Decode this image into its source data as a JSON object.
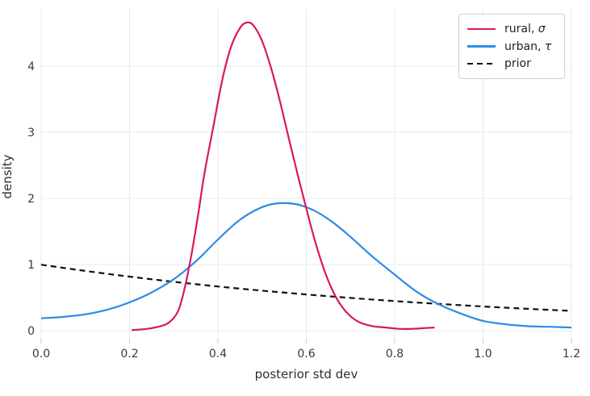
{
  "figure": {
    "background": "#ffffff",
    "grid_color": "#e9e9e9",
    "tick_color": "#c9c9c9",
    "text_color": "#3a3a3a"
  },
  "axes": {
    "xlabel": "posterior std dev",
    "ylabel": "density"
  },
  "legend": {
    "position": "upper right",
    "items": [
      {
        "key": "rural-sigma",
        "prefix": "rural, ",
        "symbol": "σ",
        "color": "#d7195f",
        "dash": "solid"
      },
      {
        "key": "urban-tau",
        "prefix": "urban, ",
        "symbol": "τ",
        "color": "#2d8ce6",
        "dash": "solid"
      },
      {
        "key": "prior",
        "prefix": "prior",
        "symbol": "",
        "color": "#111111",
        "dash": "dashed"
      }
    ]
  },
  "chart_data": {
    "type": "line",
    "title": "",
    "xlabel": "posterior std dev",
    "ylabel": "density",
    "xlim": [
      0,
      1.2
    ],
    "ylim": [
      -0.12,
      4.88
    ],
    "x_ticks": [
      0.0,
      0.2,
      0.4,
      0.6,
      0.8,
      1.0,
      1.2
    ],
    "x_tick_labels": [
      "0.0",
      "0.2",
      "0.4",
      "0.6",
      "0.8",
      "1.0",
      "1.2"
    ],
    "y_ticks": [
      0,
      1,
      2,
      3,
      4
    ],
    "y_tick_labels": [
      "0",
      "1",
      "2",
      "3",
      "4"
    ],
    "grid": true,
    "legend_position": "upper right",
    "series": [
      {
        "key": "rural-sigma",
        "name": "rural, σ",
        "color": "#d7195f",
        "style": "solid",
        "x": [
          0.205,
          0.24,
          0.27,
          0.29,
          0.31,
          0.325,
          0.34,
          0.355,
          0.37,
          0.39,
          0.41,
          0.43,
          0.45,
          0.465,
          0.48,
          0.5,
          0.52,
          0.54,
          0.56,
          0.58,
          0.6,
          0.62,
          0.64,
          0.66,
          0.68,
          0.7,
          0.72,
          0.75,
          0.78,
          0.81,
          0.84,
          0.865,
          0.89
        ],
        "y": [
          0.01,
          0.03,
          0.07,
          0.13,
          0.3,
          0.65,
          1.15,
          1.75,
          2.4,
          3.1,
          3.8,
          4.3,
          4.58,
          4.66,
          4.62,
          4.38,
          3.98,
          3.48,
          2.92,
          2.37,
          1.85,
          1.35,
          0.93,
          0.6,
          0.37,
          0.22,
          0.13,
          0.07,
          0.05,
          0.03,
          0.03,
          0.04,
          0.05
        ]
      },
      {
        "key": "urban-tau",
        "name": "urban, τ",
        "color": "#2d8ce6",
        "style": "solid",
        "x": [
          0.0,
          0.05,
          0.1,
          0.15,
          0.2,
          0.25,
          0.3,
          0.35,
          0.4,
          0.45,
          0.5,
          0.54,
          0.58,
          0.62,
          0.66,
          0.7,
          0.75,
          0.8,
          0.85,
          0.9,
          0.95,
          1.0,
          1.05,
          1.1,
          1.15,
          1.2
        ],
        "y": [
          0.19,
          0.21,
          0.25,
          0.32,
          0.43,
          0.58,
          0.78,
          1.05,
          1.38,
          1.68,
          1.87,
          1.93,
          1.91,
          1.81,
          1.64,
          1.42,
          1.12,
          0.85,
          0.59,
          0.4,
          0.26,
          0.15,
          0.1,
          0.07,
          0.06,
          0.05
        ]
      },
      {
        "key": "prior",
        "name": "prior",
        "color": "#111111",
        "style": "dashed",
        "x": [
          0.0,
          0.1,
          0.2,
          0.3,
          0.4,
          0.5,
          0.6,
          0.7,
          0.8,
          0.9,
          1.0,
          1.1,
          1.2
        ],
        "y": [
          1.0,
          0.905,
          0.819,
          0.741,
          0.67,
          0.607,
          0.549,
          0.497,
          0.449,
          0.407,
          0.368,
          0.333,
          0.301
        ]
      }
    ]
  }
}
